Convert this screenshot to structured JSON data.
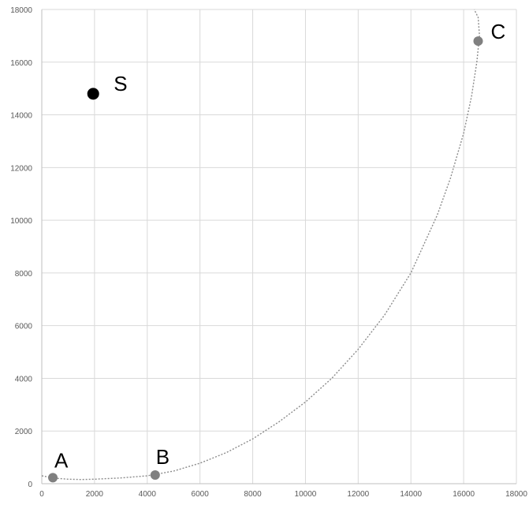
{
  "chart_data": {
    "type": "scatter",
    "title": "",
    "xlabel": "",
    "ylabel": "",
    "xlim": [
      0,
      18000
    ],
    "ylim": [
      0,
      18000
    ],
    "x_ticks": [
      0,
      2000,
      4000,
      6000,
      8000,
      10000,
      12000,
      14000,
      16000,
      18000
    ],
    "y_ticks": [
      0,
      2000,
      4000,
      6000,
      8000,
      10000,
      12000,
      14000,
      16000,
      18000
    ],
    "x_tick_labels": [
      "0",
      "2000",
      "4000",
      "6000",
      "8000",
      "10000",
      "12000",
      "14000",
      "16000",
      "18000"
    ],
    "y_tick_labels": [
      "0",
      "2000",
      "4000",
      "6000",
      "8000",
      "10000",
      "12000",
      "14000",
      "16000",
      "18000"
    ],
    "grid": true,
    "points": [
      {
        "label": "S",
        "x": 1950,
        "y": 14800,
        "color": "#000000"
      },
      {
        "label": "A",
        "x": 420,
        "y": 230,
        "color": "#808080"
      },
      {
        "label": "B",
        "x": 4300,
        "y": 330,
        "color": "#808080"
      },
      {
        "label": "C",
        "x": 16550,
        "y": 16800,
        "color": "#808080"
      }
    ],
    "curve": {
      "style": "dotted",
      "color": "#8c8c8c",
      "x": [
        0,
        500,
        1000,
        1500,
        2000,
        3000,
        4000,
        5000,
        6000,
        7000,
        8000,
        9000,
        10000,
        11000,
        12000,
        13000,
        14000,
        15000,
        15500,
        16000,
        16300,
        16500,
        16600,
        16550,
        16400
      ],
      "y": [
        300,
        210,
        170,
        160,
        170,
        220,
        300,
        480,
        780,
        1180,
        1700,
        2350,
        3100,
        4000,
        5100,
        6400,
        8000,
        10200,
        11600,
        13300,
        14700,
        16000,
        17000,
        17700,
        18000
      ]
    }
  },
  "style": {
    "axis_color": "#bfbfbf",
    "grid_color": "#d9d9d9",
    "tick_text_color": "#595959"
  }
}
